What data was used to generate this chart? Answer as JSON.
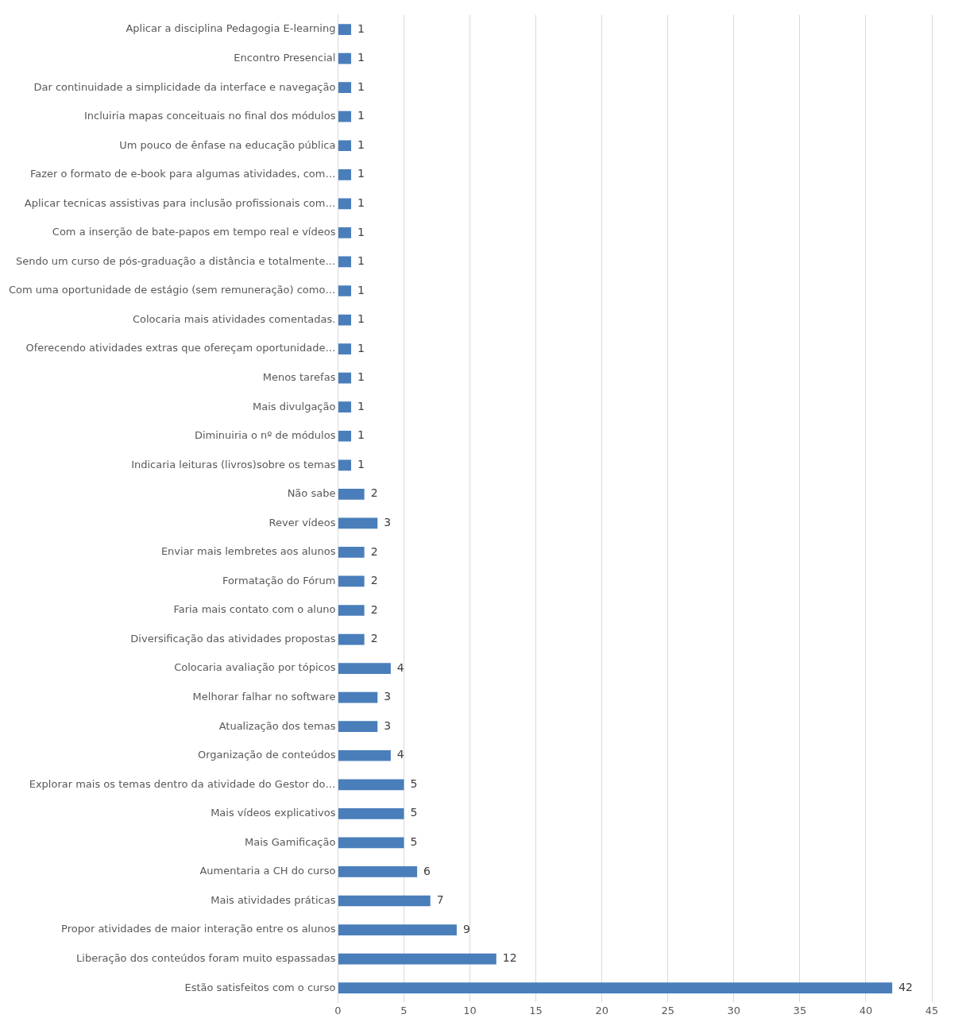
{
  "chart_data": {
    "type": "bar",
    "orientation": "horizontal",
    "categories": [
      "Aplicar a disciplina Pedagogia E-learning",
      "Encontro Presencial",
      "Dar continuidade a simplicidade da interface e navegação",
      "Incluiria mapas conceituais no final dos módulos",
      "Um pouco de ênfase na educação pública",
      "Fazer o formato de e-book para algumas atividades, com…",
      "Aplicar tecnicas assistivas para inclusão profissionais com…",
      "Com a inserção de bate-papos em tempo real e vídeos",
      "Sendo um curso de pós-graduação a distância e totalmente…",
      "Com uma oportunidade de estágio (sem remuneração) como…",
      "Colocaria mais atividades comentadas.",
      "Oferecendo atividades extras que ofereçam oportunidade…",
      "Menos tarefas",
      "Mais divulgação",
      "Diminuiria o nº de módulos",
      "Indicaria leituras (livros)sobre os temas",
      "Não sabe",
      "Rever vídeos",
      "Enviar mais lembretes aos alunos",
      "Formatação do Fórum",
      "Faria mais contato com o aluno",
      "Diversificação das atividades propostas",
      "Colocaria avaliação por tópicos",
      "Melhorar falhar no software",
      "Atualização dos temas",
      "Organização de conteúdos",
      "Explorar mais os temas dentro da atividade do Gestor do…",
      "Mais vídeos explicativos",
      "Mais Gamificação",
      "Aumentaria a CH do curso",
      "Mais atividades práticas",
      "Propor atividades de maior interação entre os alunos",
      "Liberação dos conteúdos foram muito espassadas",
      "Estão satisfeitos com o curso"
    ],
    "values": [
      1,
      1,
      1,
      1,
      1,
      1,
      1,
      1,
      1,
      1,
      1,
      1,
      1,
      1,
      1,
      1,
      2,
      3,
      2,
      2,
      2,
      2,
      4,
      3,
      3,
      4,
      5,
      5,
      5,
      6,
      7,
      9,
      12,
      42
    ],
    "color": "#4a7ebb",
    "xlim": [
      0,
      45
    ],
    "xticks": [
      0,
      5,
      10,
      15,
      20,
      25,
      30,
      35,
      40,
      45
    ],
    "grid": "x",
    "data_labels": true,
    "legend": false
  }
}
